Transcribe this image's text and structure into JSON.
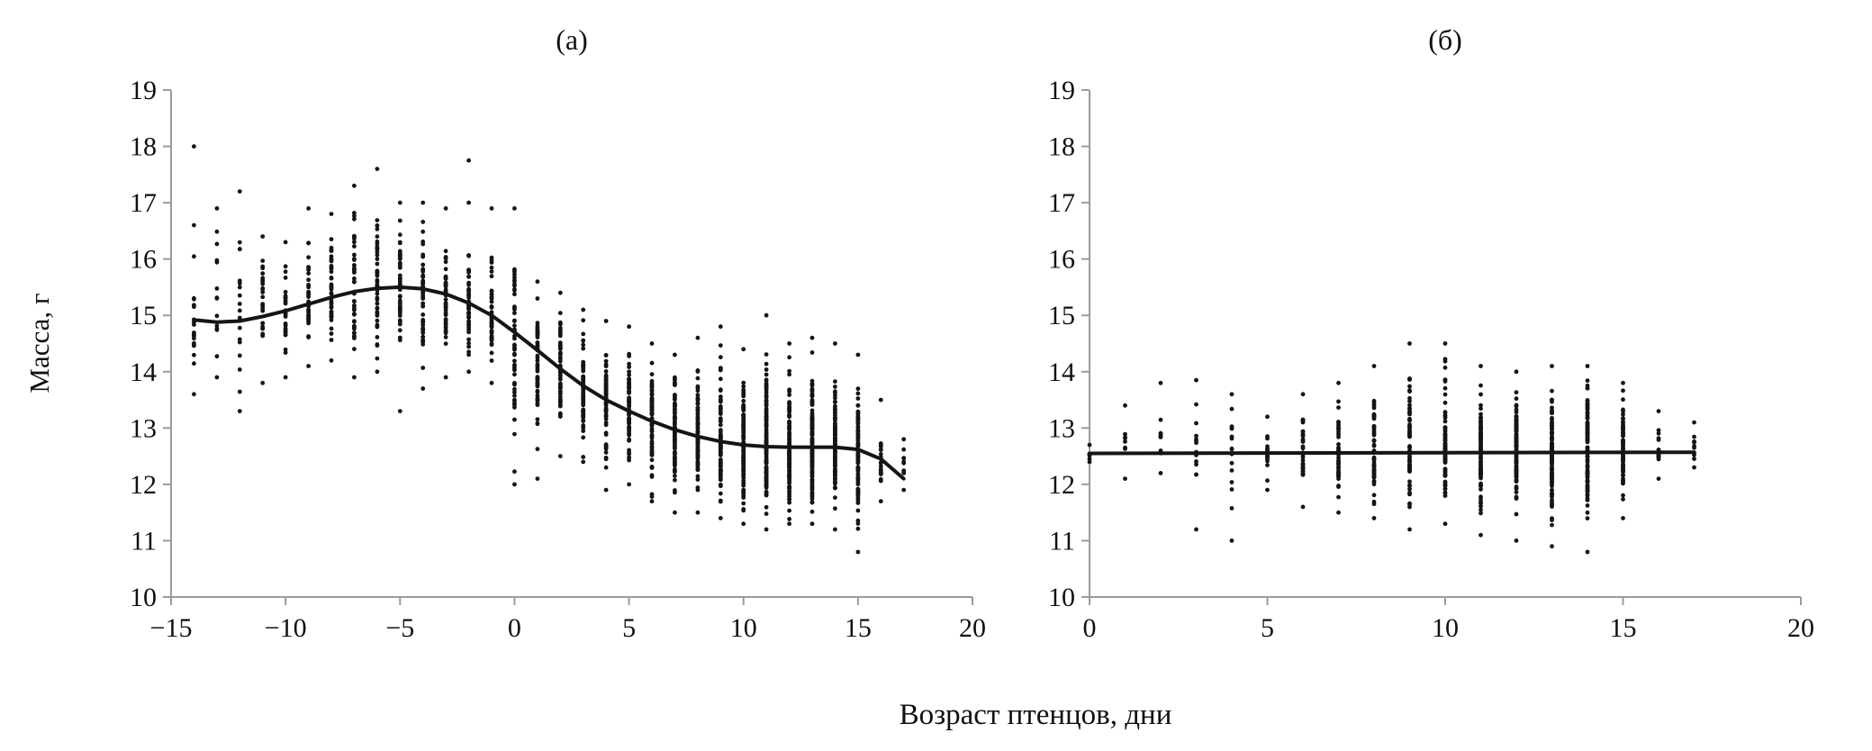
{
  "figure": {
    "xlabel": "Возраст птенцов, дни",
    "ylabel": "Масса, г",
    "background": "#ffffff",
    "point_color": "#141414",
    "trend_color": "#151515",
    "axis_color": "#9b9b9b",
    "text_color": "#111111"
  },
  "chart_data": [
    {
      "type": "scatter",
      "title": "(а)",
      "xlabel": "Возраст птенцов, дни",
      "ylabel": "Масса, г",
      "xlim": [
        -15,
        20
      ],
      "ylim": [
        10,
        19
      ],
      "grid": false,
      "legend": "none",
      "xticks": [
        {
          "v": -15,
          "label": "−15"
        },
        {
          "v": -10,
          "label": "−10"
        },
        {
          "v": -5,
          "label": "−5"
        },
        {
          "v": 0,
          "label": "0"
        },
        {
          "v": 5,
          "label": "5"
        },
        {
          "v": 10,
          "label": "10"
        },
        {
          "v": 15,
          "label": "15"
        },
        {
          "v": 20,
          "label": "20"
        }
      ],
      "yticks": [
        10,
        11,
        12,
        13,
        14,
        15,
        16,
        17,
        18,
        19
      ],
      "strips": [
        {
          "x": -14,
          "n": 20,
          "mean": 14.9,
          "min": 13.6,
          "max": 16.6,
          "outliers": [
            18.0
          ]
        },
        {
          "x": -13,
          "n": 14,
          "mean": 14.9,
          "min": 13.9,
          "max": 16.9
        },
        {
          "x": -12,
          "n": 18,
          "mean": 15.0,
          "min": 13.3,
          "max": 17.2
        },
        {
          "x": -11,
          "n": 28,
          "mean": 15.0,
          "min": 13.8,
          "max": 16.4
        },
        {
          "x": -10,
          "n": 32,
          "mean": 15.1,
          "min": 13.9,
          "max": 16.3
        },
        {
          "x": -9,
          "n": 38,
          "mean": 15.2,
          "min": 14.1,
          "max": 16.9
        },
        {
          "x": -8,
          "n": 42,
          "mean": 15.3,
          "min": 14.2,
          "max": 16.8
        },
        {
          "x": -7,
          "n": 44,
          "mean": 15.4,
          "min": 13.9,
          "max": 17.3
        },
        {
          "x": -6,
          "n": 48,
          "mean": 15.5,
          "min": 14.0,
          "max": 17.6
        },
        {
          "x": -5,
          "n": 52,
          "mean": 15.5,
          "min": 13.3,
          "max": 17.0
        },
        {
          "x": -4,
          "n": 52,
          "mean": 15.45,
          "min": 13.7,
          "max": 17.0
        },
        {
          "x": -3,
          "n": 50,
          "mean": 15.35,
          "min": 13.9,
          "max": 16.9
        },
        {
          "x": -2,
          "n": 52,
          "mean": 15.2,
          "min": 14.0,
          "max": 17.0,
          "outliers": [
            17.75
          ]
        },
        {
          "x": -1,
          "n": 50,
          "mean": 15.0,
          "min": 13.8,
          "max": 16.9
        },
        {
          "x": 0,
          "n": 58,
          "mean": 14.6,
          "min": 12.0,
          "max": 16.9
        },
        {
          "x": 1,
          "n": 58,
          "mean": 14.3,
          "min": 12.1,
          "max": 15.6
        },
        {
          "x": 2,
          "n": 60,
          "mean": 14.0,
          "min": 12.5,
          "max": 15.4
        },
        {
          "x": 3,
          "n": 62,
          "mean": 13.75,
          "min": 12.4,
          "max": 15.1
        },
        {
          "x": 4,
          "n": 66,
          "mean": 13.55,
          "min": 11.9,
          "max": 14.9
        },
        {
          "x": 5,
          "n": 70,
          "mean": 13.35,
          "min": 12.0,
          "max": 14.8
        },
        {
          "x": 6,
          "n": 74,
          "mean": 13.15,
          "min": 11.7,
          "max": 14.5
        },
        {
          "x": 7,
          "n": 80,
          "mean": 13.0,
          "min": 11.5,
          "max": 14.3
        },
        {
          "x": 8,
          "n": 88,
          "mean": 12.85,
          "min": 11.5,
          "max": 14.6
        },
        {
          "x": 9,
          "n": 96,
          "mean": 12.75,
          "min": 11.4,
          "max": 14.8
        },
        {
          "x": 10,
          "n": 110,
          "mean": 12.7,
          "min": 11.3,
          "max": 14.4
        },
        {
          "x": 11,
          "n": 125,
          "mean": 12.65,
          "min": 11.2,
          "max": 15.0
        },
        {
          "x": 12,
          "n": 125,
          "mean": 12.65,
          "min": 11.3,
          "max": 14.5
        },
        {
          "x": 13,
          "n": 125,
          "mean": 12.65,
          "min": 11.3,
          "max": 14.6
        },
        {
          "x": 14,
          "n": 110,
          "mean": 12.65,
          "min": 11.2,
          "max": 14.5
        },
        {
          "x": 15,
          "n": 90,
          "mean": 12.6,
          "min": 10.8,
          "max": 14.3
        },
        {
          "x": 16,
          "n": 22,
          "mean": 12.5,
          "min": 11.7,
          "max": 13.5
        },
        {
          "x": 17,
          "n": 10,
          "mean": 12.3,
          "min": 11.9,
          "max": 12.8
        }
      ],
      "trend": [
        [
          -14,
          14.92
        ],
        [
          -13,
          14.88
        ],
        [
          -12,
          14.9
        ],
        [
          -11,
          14.98
        ],
        [
          -10,
          15.08
        ],
        [
          -9,
          15.2
        ],
        [
          -8,
          15.32
        ],
        [
          -7,
          15.42
        ],
        [
          -6,
          15.48
        ],
        [
          -5,
          15.5
        ],
        [
          -4,
          15.47
        ],
        [
          -3,
          15.38
        ],
        [
          -2,
          15.22
        ],
        [
          -1,
          15.0
        ],
        [
          0,
          14.7
        ],
        [
          1,
          14.38
        ],
        [
          2,
          14.05
        ],
        [
          3,
          13.75
        ],
        [
          4,
          13.5
        ],
        [
          5,
          13.3
        ],
        [
          6,
          13.12
        ],
        [
          7,
          12.97
        ],
        [
          8,
          12.85
        ],
        [
          9,
          12.76
        ],
        [
          10,
          12.7
        ],
        [
          11,
          12.67
        ],
        [
          12,
          12.66
        ],
        [
          13,
          12.66
        ],
        [
          14,
          12.66
        ],
        [
          15,
          12.62
        ],
        [
          16,
          12.45
        ],
        [
          17,
          12.1
        ]
      ]
    },
    {
      "type": "scatter",
      "title": "(б)",
      "xlabel": "Возраст птенцов, дни",
      "ylabel": "Масса, г",
      "xlim": [
        0,
        20
      ],
      "ylim": [
        10,
        19
      ],
      "grid": false,
      "legend": "none",
      "xticks": [
        {
          "v": 0,
          "label": "0"
        },
        {
          "v": 5,
          "label": "5"
        },
        {
          "v": 10,
          "label": "10"
        },
        {
          "v": 15,
          "label": "15"
        },
        {
          "v": 20,
          "label": "20"
        }
      ],
      "yticks": [
        10,
        11,
        12,
        13,
        14,
        15,
        16,
        17,
        18,
        19
      ],
      "strips": [
        {
          "x": 0,
          "n": 6,
          "mean": 12.55,
          "min": 12.4,
          "max": 12.7
        },
        {
          "x": 1,
          "n": 8,
          "mean": 12.7,
          "min": 12.1,
          "max": 13.4
        },
        {
          "x": 2,
          "n": 10,
          "mean": 12.8,
          "min": 12.2,
          "max": 13.8
        },
        {
          "x": 3,
          "n": 14,
          "mean": 12.7,
          "min": 11.2,
          "max": 13.85
        },
        {
          "x": 4,
          "n": 16,
          "mean": 12.5,
          "min": 11.0,
          "max": 13.6
        },
        {
          "x": 5,
          "n": 20,
          "mean": 12.5,
          "min": 11.9,
          "max": 13.2
        },
        {
          "x": 6,
          "n": 34,
          "mean": 12.55,
          "min": 11.6,
          "max": 13.6
        },
        {
          "x": 7,
          "n": 44,
          "mean": 12.55,
          "min": 11.5,
          "max": 13.8
        },
        {
          "x": 8,
          "n": 58,
          "mean": 12.6,
          "min": 11.4,
          "max": 14.1
        },
        {
          "x": 9,
          "n": 72,
          "mean": 12.6,
          "min": 11.2,
          "max": 14.5
        },
        {
          "x": 10,
          "n": 88,
          "mean": 12.6,
          "min": 11.3,
          "max": 14.5
        },
        {
          "x": 11,
          "n": 98,
          "mean": 12.6,
          "min": 11.1,
          "max": 14.1
        },
        {
          "x": 12,
          "n": 108,
          "mean": 12.6,
          "min": 11.0,
          "max": 14.0
        },
        {
          "x": 13,
          "n": 112,
          "mean": 12.6,
          "min": 10.9,
          "max": 14.1
        },
        {
          "x": 14,
          "n": 102,
          "mean": 12.6,
          "min": 10.8,
          "max": 14.1
        },
        {
          "x": 15,
          "n": 68,
          "mean": 12.6,
          "min": 11.4,
          "max": 13.8
        },
        {
          "x": 16,
          "n": 20,
          "mean": 12.6,
          "min": 12.1,
          "max": 13.3
        },
        {
          "x": 17,
          "n": 10,
          "mean": 12.7,
          "min": 12.3,
          "max": 13.1
        }
      ],
      "trend": [
        [
          0,
          12.55
        ],
        [
          17,
          12.57
        ]
      ]
    }
  ]
}
